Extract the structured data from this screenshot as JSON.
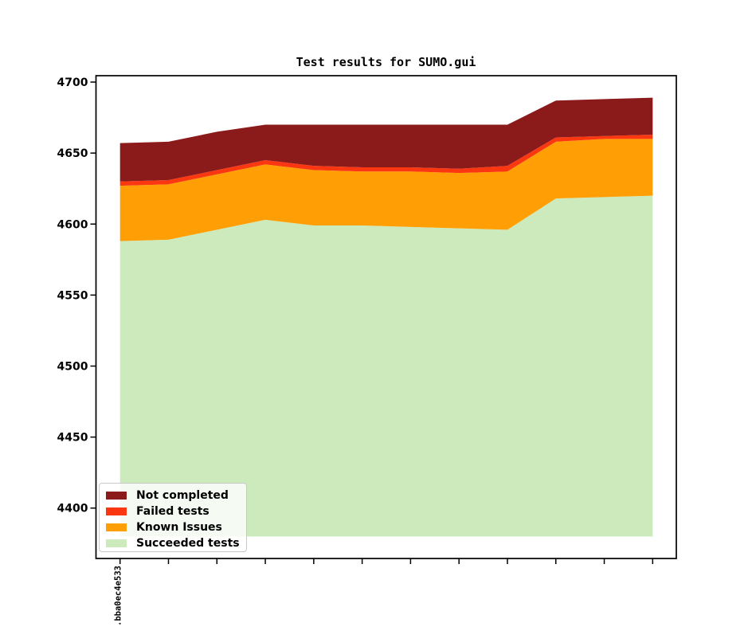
{
  "chart_data": {
    "type": "area",
    "stacked": true,
    "title": "Test results for SUMO.gui",
    "x_tick_labels": [
      ".bba0ec4e533",
      "",
      "",
      "",
      "",
      "",
      "",
      "",
      "",
      "",
      "",
      ""
    ],
    "y_tick_labels": [
      "4700",
      "4650",
      "4600",
      "4550",
      "4500",
      "4450",
      "4400"
    ],
    "y_ticks": [
      4700,
      4650,
      4600,
      4550,
      4500,
      4450,
      4400
    ],
    "ylim": [
      4364.5,
      4704.5
    ],
    "baseline": 4380,
    "grid": false,
    "series": [
      {
        "name": "Succeeded tests",
        "color": "#cdeabd",
        "cumulative_top": [
          4588,
          4589,
          4596,
          4603,
          4599,
          4599,
          4598,
          4597,
          4596,
          4618,
          4619,
          4620
        ]
      },
      {
        "name": "Known Issues",
        "color": "#ff9f05",
        "cumulative_top": [
          4627,
          4628,
          4635,
          4642,
          4638,
          4637,
          4637,
          4636,
          4637,
          4658,
          4660,
          4660
        ]
      },
      {
        "name": "Failed tests",
        "color": "#fa3711",
        "cumulative_top": [
          4630,
          4631,
          4638,
          4645,
          4641,
          4640,
          4640,
          4639,
          4641,
          4661,
          4662,
          4663
        ]
      },
      {
        "name": "Not completed",
        "color": "#8b1a1a",
        "cumulative_top": [
          4657,
          4658,
          4665,
          4670,
          4670,
          4670,
          4670,
          4670,
          4670,
          4687,
          4688,
          4689
        ]
      }
    ],
    "legend": {
      "position": "lower left",
      "entries": [
        {
          "label": "Not completed",
          "color": "#8b1a1a"
        },
        {
          "label": "Failed tests",
          "color": "#fa3711"
        },
        {
          "label": "Known Issues",
          "color": "#ff9f05"
        },
        {
          "label": "Succeeded tests",
          "color": "#cdeabd"
        }
      ]
    }
  }
}
